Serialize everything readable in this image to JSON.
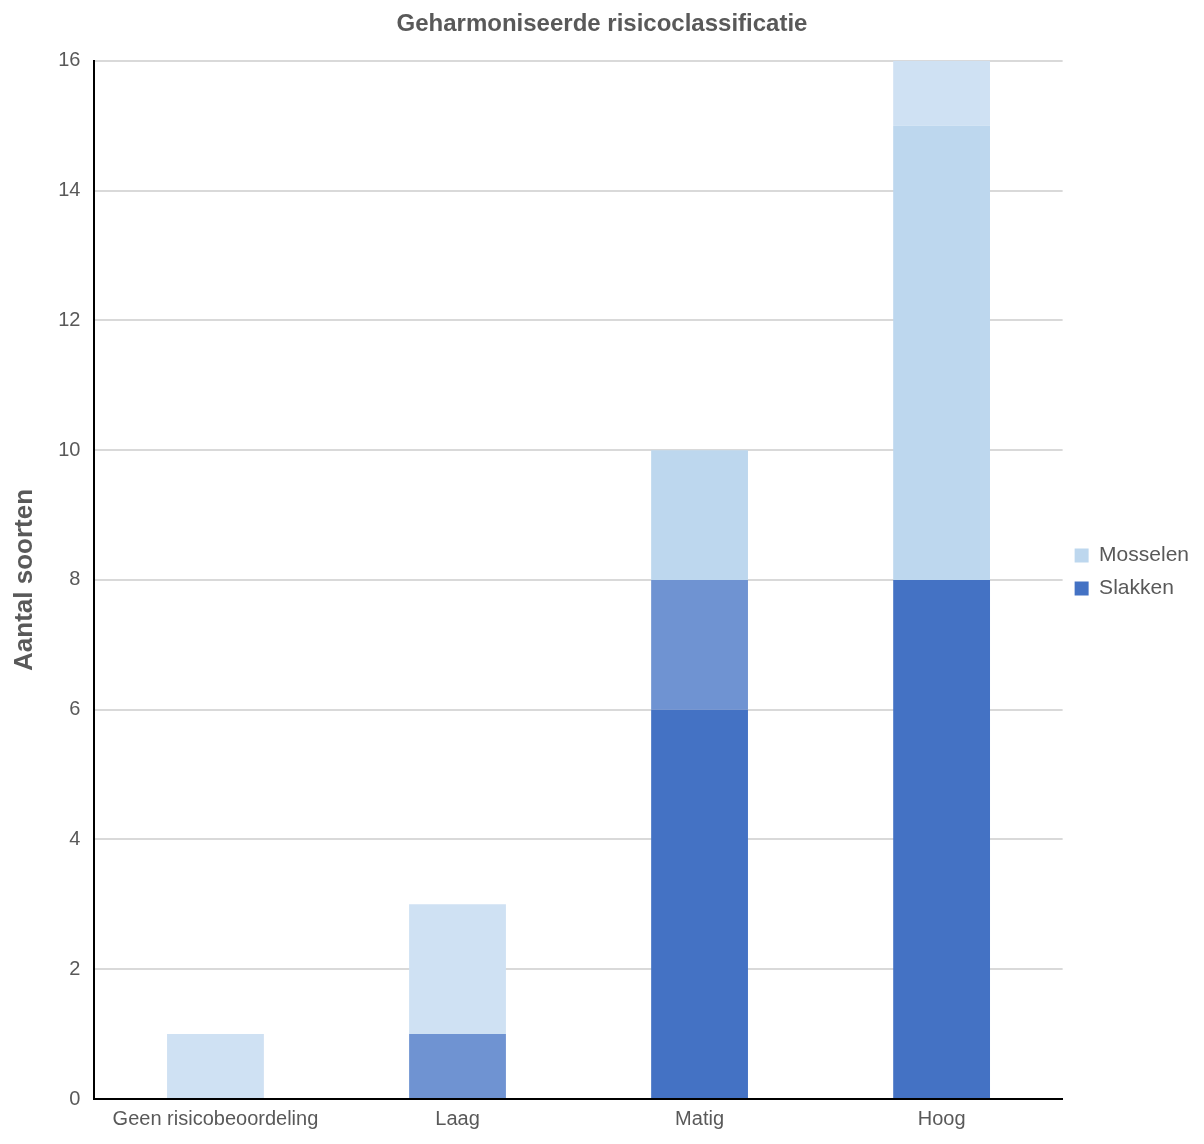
{
  "chart_data": {
    "type": "bar",
    "title": "Geharmoniseerde risicoclassificatie",
    "ylabel": "Aantal soorten",
    "categories": [
      "Geen risicobeoordeling",
      "Laag",
      "Matig",
      "Hoog"
    ],
    "series": [
      {
        "name": "Slakken",
        "color": "#4472c4",
        "values": [
          0,
          0,
          6,
          8
        ]
      },
      {
        "color": "#6f93d2",
        "values": [
          0,
          1,
          2,
          0
        ]
      },
      {
        "name": "Mosselen",
        "color": "#bdd7ee",
        "values": [
          0,
          0,
          2,
          7
        ]
      },
      {
        "color": "#cfe1f3",
        "values": [
          1,
          2,
          0,
          1
        ]
      }
    ],
    "stacked": true,
    "ylim": [
      0,
      16
    ],
    "yticks": [
      0,
      2,
      4,
      6,
      8,
      10,
      12,
      14,
      16
    ],
    "grid": "y",
    "legend": "right"
  }
}
